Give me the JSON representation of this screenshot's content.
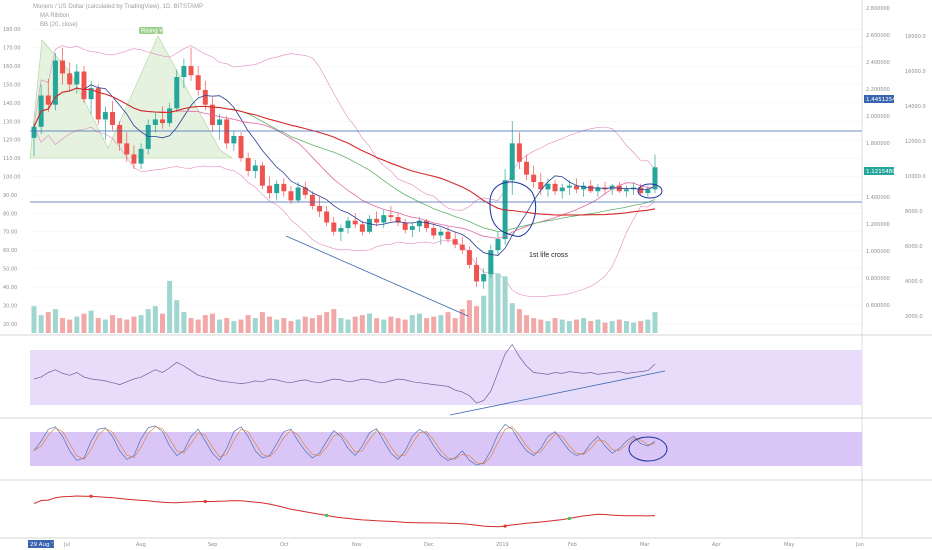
{
  "chart_data": {
    "type": "candlestick",
    "title": "Monero / US Dollar (calculated by TradingView), 1D, BITSTAMP",
    "legend_lines": [
      "MA Ribbon",
      "BB (20, close)"
    ],
    "pattern_label": "Rising Wedge",
    "annotation": "1st life cross",
    "x_ticks": [
      "Jul",
      "Aug",
      "Sep",
      "Oct",
      "Nov",
      "Dec",
      "2019",
      "Feb",
      "Mar",
      "Apr",
      "May",
      "Jun"
    ],
    "current_date_label": "29 Aug '18",
    "y_left_ticks": [
      "180.00",
      "170.00",
      "160.00",
      "150.00",
      "140.00",
      "130.00",
      "120.00",
      "110.00",
      "100.00",
      "90.00",
      "80.00",
      "70.00",
      "60.00",
      "50.00",
      "40.00",
      "30.00",
      "20.00"
    ],
    "y_right_ticks": [
      "2.800000",
      "2.600000",
      "2.400000",
      "2.200000",
      "2.000000",
      "1.800000",
      "1.600000",
      "1.400000",
      "1.200000",
      "1.000000",
      "0.800000",
      "0.600000"
    ],
    "y_right2_ticks": [
      "18000.0",
      "16000.0",
      "14000.0",
      "12000.0",
      "10000.0",
      "8000.0",
      "6000.0",
      "4000.0",
      "2000.0"
    ],
    "price_badge_blue": "1.4451254",
    "price_badge_green": "1.1215480",
    "ohlc": [
      [
        121,
        129,
        111,
        127
      ],
      [
        127,
        150,
        123,
        144
      ],
      [
        144,
        153,
        135,
        139
      ],
      [
        139,
        167,
        136,
        163
      ],
      [
        163,
        170,
        150,
        156
      ],
      [
        156,
        162,
        146,
        150
      ],
      [
        150,
        161,
        145,
        157
      ],
      [
        157,
        160,
        140,
        142
      ],
      [
        142,
        152,
        134,
        148
      ],
      [
        148,
        150,
        128,
        131
      ],
      [
        131,
        138,
        120,
        135
      ],
      [
        135,
        141,
        125,
        128
      ],
      [
        128,
        130,
        114,
        118
      ],
      [
        118,
        124,
        108,
        112
      ],
      [
        112,
        117,
        104,
        107
      ],
      [
        107,
        118,
        104,
        115
      ],
      [
        115,
        131,
        112,
        128
      ],
      [
        128,
        135,
        124,
        131
      ],
      [
        131,
        138,
        126,
        129
      ],
      [
        129,
        140,
        127,
        137
      ],
      [
        137,
        158,
        135,
        154
      ],
      [
        154,
        164,
        148,
        160
      ],
      [
        160,
        170,
        152,
        155
      ],
      [
        155,
        160,
        144,
        147
      ],
      [
        147,
        152,
        136,
        139
      ],
      [
        139,
        143,
        124,
        128
      ],
      [
        128,
        134,
        120,
        131
      ],
      [
        131,
        133,
        115,
        118
      ],
      [
        118,
        125,
        114,
        122
      ],
      [
        122,
        124,
        108,
        110
      ],
      [
        110,
        113,
        100,
        103
      ],
      [
        103,
        109,
        99,
        106
      ],
      [
        106,
        108,
        93,
        95
      ],
      [
        95,
        100,
        88,
        91
      ],
      [
        91,
        98,
        87,
        96
      ],
      [
        96,
        99,
        89,
        92
      ],
      [
        92,
        95,
        85,
        87
      ],
      [
        87,
        97,
        86,
        94
      ],
      [
        94,
        97,
        88,
        90
      ],
      [
        90,
        92,
        82,
        84
      ],
      [
        84,
        89,
        78,
        81
      ],
      [
        81,
        84,
        73,
        75
      ],
      [
        75,
        78,
        68,
        70
      ],
      [
        70,
        74,
        65,
        72
      ],
      [
        72,
        78,
        69,
        76
      ],
      [
        76,
        80,
        72,
        74
      ],
      [
        74,
        76,
        68,
        70
      ],
      [
        70,
        79,
        69,
        77
      ],
      [
        77,
        81,
        73,
        75
      ],
      [
        75,
        82,
        72,
        79
      ],
      [
        79,
        84,
        76,
        78
      ],
      [
        78,
        80,
        73,
        75
      ],
      [
        75,
        77,
        69,
        71
      ],
      [
        71,
        75,
        67,
        73
      ],
      [
        73,
        78,
        70,
        76
      ],
      [
        76,
        77,
        70,
        72
      ],
      [
        72,
        75,
        66,
        68
      ],
      [
        68,
        72,
        63,
        70
      ],
      [
        70,
        73,
        64,
        66
      ],
      [
        66,
        70,
        61,
        63
      ],
      [
        63,
        67,
        58,
        60
      ],
      [
        60,
        62,
        50,
        52
      ],
      [
        52,
        56,
        40,
        43
      ],
      [
        43,
        50,
        39,
        47
      ],
      [
        47,
        63,
        45,
        60
      ],
      [
        60,
        70,
        57,
        66
      ],
      [
        66,
        104,
        63,
        98
      ],
      [
        98,
        130,
        90,
        118
      ],
      [
        118,
        124,
        104,
        108
      ],
      [
        108,
        112,
        98,
        101
      ],
      [
        101,
        106,
        94,
        97
      ],
      [
        97,
        102,
        90,
        93
      ],
      [
        93,
        99,
        89,
        96
      ],
      [
        96,
        98,
        90,
        92
      ],
      [
        92,
        96,
        88,
        94
      ],
      [
        94,
        98,
        90,
        95
      ],
      [
        95,
        99,
        91,
        93
      ],
      [
        93,
        97,
        89,
        95
      ],
      [
        95,
        98,
        91,
        92
      ],
      [
        92,
        96,
        89,
        94
      ],
      [
        94,
        97,
        90,
        93
      ],
      [
        93,
        96,
        90,
        95
      ],
      [
        95,
        97,
        91,
        92
      ],
      [
        92,
        95,
        89,
        93
      ],
      [
        93,
        97,
        90,
        94
      ],
      [
        94,
        96,
        90,
        91
      ],
      [
        91,
        95,
        89,
        93
      ],
      [
        93,
        112,
        91,
        105
      ]
    ],
    "volume": [
      18,
      12,
      14,
      16,
      10,
      9,
      11,
      13,
      15,
      10,
      9,
      12,
      10,
      9,
      11,
      12,
      16,
      18,
      13,
      35,
      22,
      14,
      10,
      9,
      12,
      13,
      9,
      10,
      8,
      9,
      12,
      10,
      14,
      11,
      9,
      10,
      8,
      9,
      11,
      10,
      12,
      14,
      16,
      10,
      9,
      11,
      12,
      13,
      10,
      9,
      11,
      10,
      9,
      12,
      13,
      10,
      11,
      12,
      14,
      10,
      16,
      22,
      18,
      25,
      55,
      40,
      38,
      20,
      16,
      12,
      10,
      9,
      8,
      10,
      9,
      8,
      9,
      10,
      8,
      9,
      7,
      8,
      9,
      8,
      7,
      8,
      9,
      14
    ],
    "rsi": [
      48,
      50,
      55,
      58,
      54,
      52,
      55,
      50,
      48,
      47,
      46,
      44,
      42,
      45,
      48,
      50,
      54,
      58,
      55,
      60,
      66,
      62,
      57,
      52,
      50,
      48,
      46,
      45,
      44,
      43,
      44,
      46,
      45,
      48,
      47,
      45,
      44,
      46,
      47,
      45,
      44,
      46,
      48,
      47,
      45,
      46,
      48,
      47,
      45,
      44,
      46,
      48,
      47,
      45,
      44,
      43,
      42,
      41,
      40,
      36,
      34,
      30,
      22,
      25,
      35,
      55,
      75,
      85,
      72,
      62,
      55,
      54,
      53,
      55,
      54,
      56,
      55,
      54,
      55,
      53,
      54,
      55,
      56,
      54,
      55,
      56,
      57,
      64
    ],
    "stoch": [
      40,
      60,
      85,
      90,
      70,
      40,
      20,
      25,
      60,
      85,
      88,
      70,
      40,
      22,
      30,
      65,
      88,
      92,
      80,
      50,
      30,
      40,
      70,
      85,
      60,
      35,
      20,
      45,
      80,
      90,
      70,
      40,
      25,
      30,
      55,
      80,
      85,
      60,
      40,
      25,
      35,
      60,
      82,
      70,
      45,
      30,
      50,
      78,
      86,
      60,
      35,
      22,
      40,
      70,
      85,
      75,
      50,
      30,
      20,
      25,
      40,
      20,
      10,
      15,
      40,
      75,
      95,
      85,
      60,
      40,
      30,
      45,
      70,
      80,
      60,
      40,
      30,
      35,
      55,
      70,
      50,
      35,
      45,
      60,
      70,
      55,
      50,
      60
    ]
  }
}
